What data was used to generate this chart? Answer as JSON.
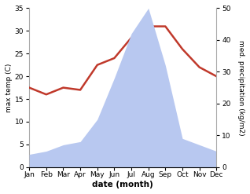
{
  "months": [
    "Jan",
    "Feb",
    "Mar",
    "Apr",
    "May",
    "Jun",
    "Jul",
    "Aug",
    "Sep",
    "Oct",
    "Nov",
    "Dec"
  ],
  "temperature": [
    17.5,
    16.0,
    17.5,
    17.0,
    22.5,
    24.0,
    28.5,
    31.0,
    31.0,
    26.0,
    22.0,
    20.0
  ],
  "precipitation": [
    4,
    5,
    7,
    8,
    15,
    28,
    42,
    50,
    32,
    9,
    7,
    5
  ],
  "temp_color": "#c0392b",
  "precip_color": "#b8c8f0",
  "xlabel": "date (month)",
  "ylabel_left": "max temp (C)",
  "ylabel_right": "med. precipitation (kg/m2)",
  "ylim_left": [
    0,
    35
  ],
  "ylim_right": [
    0,
    50
  ],
  "yticks_left": [
    0,
    5,
    10,
    15,
    20,
    25,
    30,
    35
  ],
  "yticks_right": [
    0,
    10,
    20,
    30,
    40,
    50
  ],
  "background_color": "#ffffff"
}
